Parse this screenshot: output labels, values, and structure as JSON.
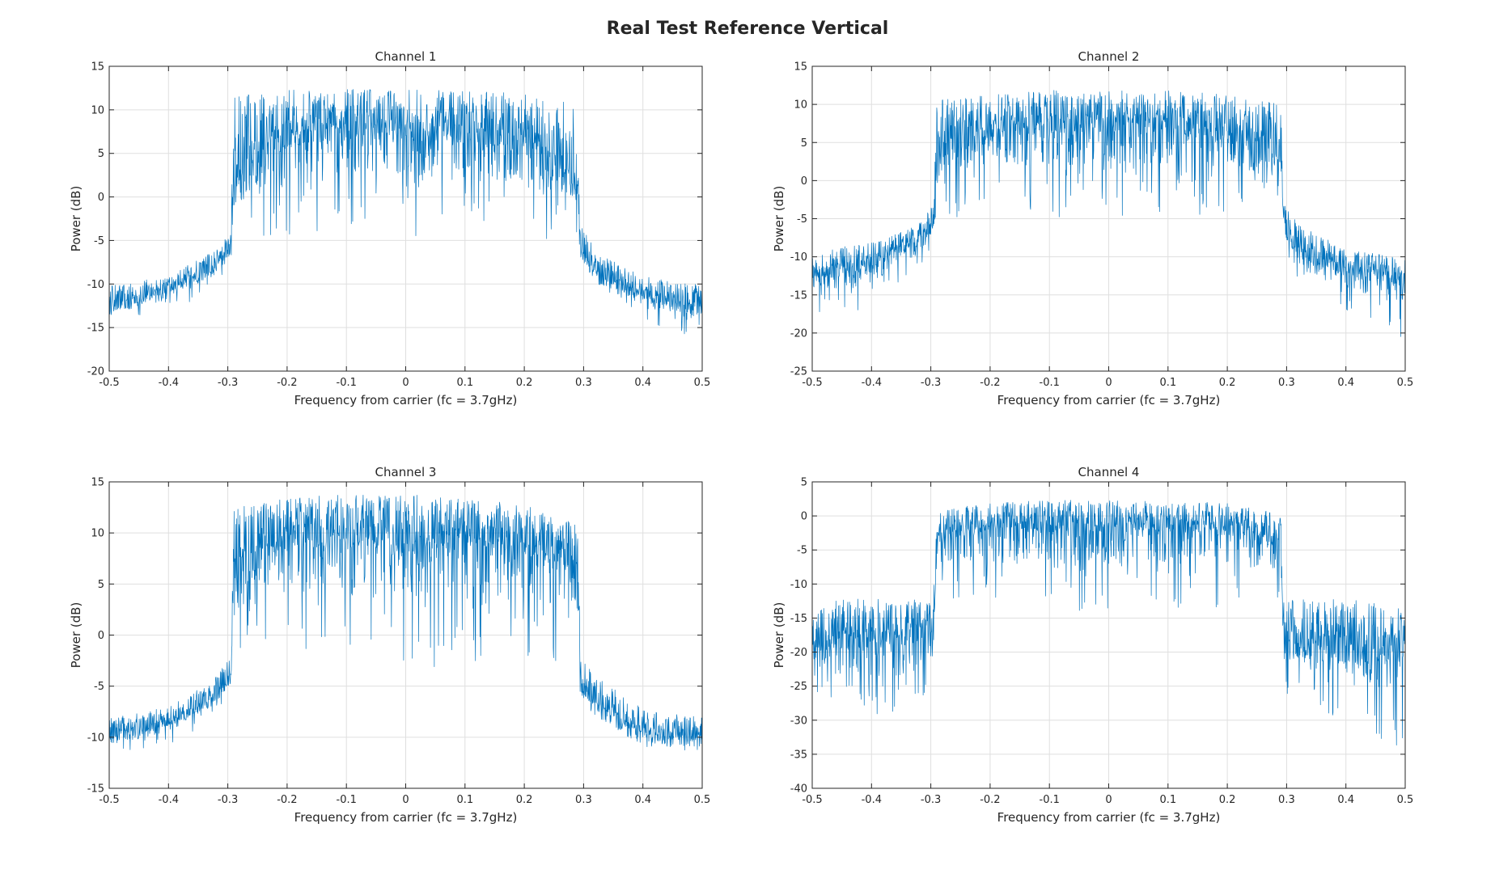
{
  "figure": {
    "title": "Real Test Reference Vertical",
    "line_color": "#0072BD",
    "grid_color": "#dfdfdf",
    "axis_color": "#262626"
  },
  "chart_data": [
    {
      "type": "line",
      "title": "Channel 1",
      "xlabel": "Frequency from carrier (fc = 3.7gHz)",
      "ylabel": "Power (dB)",
      "xlim": [
        -0.5,
        0.5
      ],
      "ylim": [
        -20,
        15
      ],
      "xticks": [
        -0.5,
        -0.4,
        -0.3,
        -0.2,
        -0.1,
        0,
        0.1,
        0.2,
        0.3,
        0.4,
        0.5
      ],
      "xtick_labels": [
        "-0.5",
        "-0.4",
        "-0.3",
        "-0.2",
        "-0.1",
        "0",
        "0.1",
        "0.2",
        "0.3",
        "0.4",
        "0.5"
      ],
      "yticks": [
        -20,
        -15,
        -10,
        -5,
        0,
        5,
        10,
        15
      ],
      "ytick_labels": [
        "-20",
        "-15",
        "-10",
        "-5",
        "0",
        "5",
        "10",
        "15"
      ],
      "grid": true,
      "series": [
        {
          "x": [
            -0.5,
            -0.4,
            -0.32,
            -0.295,
            -0.29,
            -0.2,
            -0.1,
            0,
            0.1,
            0.2,
            0.29,
            0.295,
            0.32,
            0.4,
            0.5
          ],
          "y_upper": [
            -10,
            -9,
            -6,
            -4,
            12,
            12.5,
            12.5,
            12.5,
            12.5,
            12,
            11,
            -3,
            -6,
            -9,
            -10
          ],
          "y_lower": [
            -15,
            -14,
            -10,
            -8,
            -5,
            -5,
            -4,
            -5,
            -5,
            -5,
            -5,
            -7,
            -10,
            -14,
            -17
          ],
          "y_center": [
            -12,
            -10,
            -7.5,
            -5.5,
            5,
            9,
            9.5,
            9.5,
            9,
            8.5,
            5,
            -5,
            -8,
            -10.5,
            -12
          ]
        }
      ]
    },
    {
      "type": "line",
      "title": "Channel 2",
      "xlabel": "Frequency from carrier (fc = 3.7gHz)",
      "ylabel": "Power (dB)",
      "xlim": [
        -0.5,
        0.5
      ],
      "ylim": [
        -25,
        15
      ],
      "xticks": [
        -0.5,
        -0.4,
        -0.3,
        -0.2,
        -0.1,
        0,
        0.1,
        0.2,
        0.3,
        0.4,
        0.5
      ],
      "xtick_labels": [
        "-0.5",
        "-0.4",
        "-0.3",
        "-0.2",
        "-0.1",
        "0",
        "0.1",
        "0.2",
        "0.3",
        "0.4",
        "0.5"
      ],
      "yticks": [
        -25,
        -20,
        -15,
        -10,
        -5,
        0,
        5,
        10,
        15
      ],
      "ytick_labels": [
        "-25",
        "-20",
        "-15",
        "-10",
        "-5",
        "0",
        "5",
        "10",
        "15"
      ],
      "grid": true,
      "series": [
        {
          "x": [
            -0.5,
            -0.4,
            -0.32,
            -0.295,
            -0.29,
            -0.2,
            -0.1,
            0,
            0.1,
            0.2,
            0.29,
            0.295,
            0.32,
            0.4,
            0.5
          ],
          "y_upper": [
            -9,
            -8,
            -5.5,
            -3,
            11,
            11.5,
            12,
            12,
            12,
            11.5,
            10.5,
            -3,
            -5.5,
            -9,
            -10
          ],
          "y_lower": [
            -18,
            -17,
            -12,
            -10,
            -5,
            -4.5,
            -5,
            -4.5,
            -5,
            -4.5,
            -5,
            -8,
            -14,
            -17,
            -21
          ],
          "y_center": [
            -11.5,
            -10,
            -7,
            -5,
            6,
            8.5,
            9,
            9,
            9,
            8,
            6,
            -5,
            -8,
            -11,
            -12
          ]
        }
      ]
    },
    {
      "type": "line",
      "title": "Channel 3",
      "xlabel": "Frequency from carrier (fc = 3.7gHz)",
      "ylabel": "Power (dB)",
      "xlim": [
        -0.5,
        0.5
      ],
      "ylim": [
        -15,
        15
      ],
      "xticks": [
        -0.5,
        -0.4,
        -0.3,
        -0.2,
        -0.1,
        0,
        0.1,
        0.2,
        0.3,
        0.4,
        0.5
      ],
      "xtick_labels": [
        "-0.5",
        "-0.4",
        "-0.3",
        "-0.2",
        "-0.1",
        "0",
        "0.1",
        "0.2",
        "0.3",
        "0.4",
        "0.5"
      ],
      "yticks": [
        -15,
        -10,
        -5,
        0,
        5,
        10,
        15
      ],
      "ytick_labels": [
        "-15",
        "-10",
        "-5",
        "0",
        "5",
        "10",
        "15"
      ],
      "grid": true,
      "series": [
        {
          "x": [
            -0.5,
            -0.4,
            -0.32,
            -0.295,
            -0.29,
            -0.2,
            -0.1,
            0,
            0.1,
            0.2,
            0.29,
            0.295,
            0.32,
            0.4,
            0.5
          ],
          "y_upper": [
            -8,
            -7,
            -4,
            -2,
            13,
            13.5,
            14,
            14,
            13.5,
            13,
            11,
            -2,
            -4,
            -7,
            -8
          ],
          "y_lower": [
            -12,
            -11,
            -8,
            -6,
            -3,
            -3,
            -3,
            -3.5,
            -3,
            -3,
            -3,
            -8,
            -8,
            -11,
            -11.5
          ],
          "y_center": [
            -9.5,
            -8,
            -5.5,
            -3.5,
            8,
            11,
            11,
            11,
            11,
            10.5,
            8,
            -4,
            -6,
            -9,
            -9.5
          ]
        }
      ]
    },
    {
      "type": "line",
      "title": "Channel 4",
      "xlabel": "Frequency from carrier (fc = 3.7gHz)",
      "ylabel": "Power (dB)",
      "xlim": [
        -0.5,
        0.5
      ],
      "ylim": [
        -40,
        5
      ],
      "xticks": [
        -0.5,
        -0.4,
        -0.3,
        -0.2,
        -0.1,
        0,
        0.1,
        0.2,
        0.3,
        0.4,
        0.5
      ],
      "xtick_labels": [
        "-0.5",
        "-0.4",
        "-0.3",
        "-0.2",
        "-0.1",
        "0",
        "0.1",
        "0.2",
        "0.3",
        "0.4",
        "0.5"
      ],
      "yticks": [
        -40,
        -35,
        -30,
        -25,
        -20,
        -15,
        -10,
        -5,
        0,
        5
      ],
      "ytick_labels": [
        "-40",
        "-35",
        "-30",
        "-25",
        "-20",
        "-15",
        "-10",
        "-5",
        "0",
        "5"
      ],
      "grid": true,
      "series": [
        {
          "x": [
            -0.5,
            -0.4,
            -0.3,
            -0.295,
            -0.29,
            -0.2,
            -0.1,
            0,
            0.1,
            0.2,
            0.29,
            0.295,
            0.3,
            0.4,
            0.5
          ],
          "y_upper": [
            -12,
            -12,
            -12,
            -10,
            1,
            2,
            2.5,
            2.5,
            2.5,
            2,
            0.5,
            -10,
            -12,
            -12,
            -13
          ],
          "y_lower": [
            -28,
            -31,
            -26,
            -24,
            -14,
            -14,
            -14,
            -14,
            -14,
            -14,
            -13,
            -26,
            -28,
            -30,
            -36
          ],
          "y_center": [
            -16,
            -16,
            -15.5,
            -15,
            -2,
            0,
            0,
            0,
            0,
            -0.5,
            -2.5,
            -16,
            -16.5,
            -17,
            -17.5
          ]
        }
      ]
    }
  ]
}
